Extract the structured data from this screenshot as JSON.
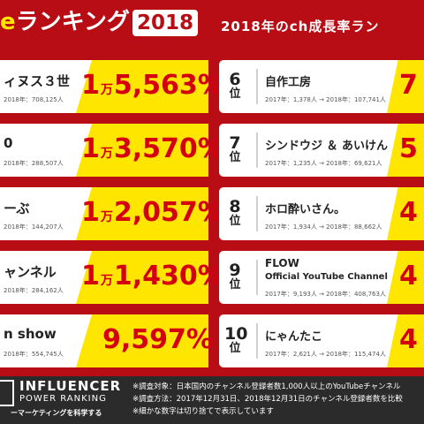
{
  "header": {
    "title_accent": "e",
    "title_main": "ランキング",
    "year": "2018",
    "subtitle": "2018年のch成長率ラン"
  },
  "left_items": [
    {
      "name": "ィヌス３世",
      "stats": "2018年：708,125人",
      "growth_pre": "1",
      "growth_man": "万",
      "growth_post": "5,563%"
    },
    {
      "name": "0",
      "stats": "2018年：288,507人",
      "growth_pre": "1",
      "growth_man": "万",
      "growth_post": "3,570%"
    },
    {
      "name": "ーぶ",
      "stats": "2018年：144,207人",
      "growth_pre": "1",
      "growth_man": "万",
      "growth_post": "2,057%"
    },
    {
      "name": "ャンネル",
      "stats": "2018年：284,162人",
      "growth_pre": "1",
      "growth_man": "万",
      "growth_post": "1,430%"
    },
    {
      "name": "n show",
      "stats": "2018年：554,745人",
      "growth_pre": "",
      "growth_man": "",
      "growth_post": "9,597%"
    }
  ],
  "right_items": [
    {
      "rank": "6",
      "suffix": "位",
      "name": "自作工房",
      "name2": "",
      "stats": "2017年：1,378人 → 2018年：107,741人",
      "growth": "7"
    },
    {
      "rank": "7",
      "suffix": "位",
      "name": "シンドウジ ＆ あいけん",
      "name2": "",
      "stats": "2017年：1,235人 → 2018年：69,621人",
      "growth": "5"
    },
    {
      "rank": "8",
      "suffix": "位",
      "name": "ホロ酔いさん。",
      "name2": "",
      "stats": "2017年：1,934人 → 2018年：88,662人",
      "growth": "4"
    },
    {
      "rank": "9",
      "suffix": "位",
      "name": "FLOW",
      "name2": "Official YouTube Channel",
      "stats": "2017年：9,193人 → 2018年：408,763人",
      "growth": "4"
    },
    {
      "rank": "10",
      "suffix": "位",
      "name": "にゃんたこ",
      "name2": "",
      "stats": "2017年：2,621人 → 2018年：115,474人",
      "growth": "4"
    }
  ],
  "footer": {
    "logo_main": "INFLUENCER",
    "logo_sub": "POWER RANKING",
    "logo_tag": "ーマーケティングを科学する",
    "notes": [
      "※調査対象：日本国内のチャンネル登録者数1,000人以上のYouTubeチャンネル",
      "※調査方法：2017年12月31日、2018年12月31日のチャンネル登録者数を比較",
      "※細かな数字は切り捨てで表示しています"
    ]
  },
  "colors": {
    "background": "#b80d14",
    "highlight": "#ffe600",
    "growth_text": "#d4000f",
    "footer": "#2b2b2b"
  }
}
